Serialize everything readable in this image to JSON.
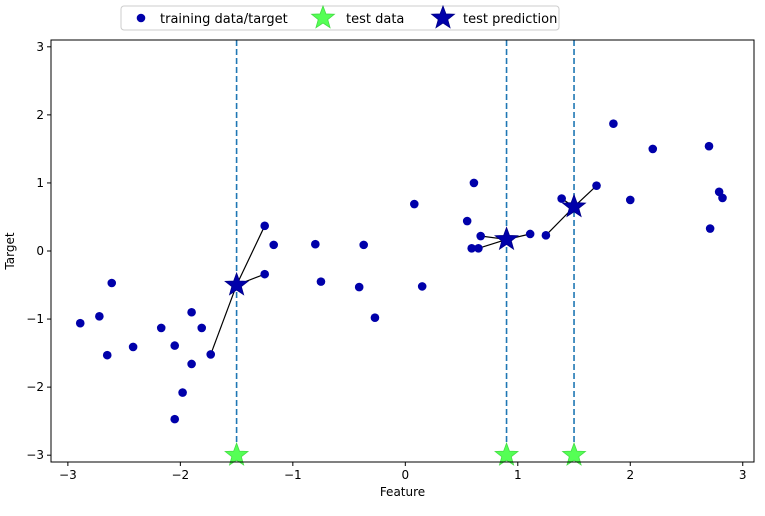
{
  "chart_data": {
    "type": "scatter",
    "xlabel": "Feature",
    "ylabel": "Target",
    "xlim": [
      -3.15,
      3.1
    ],
    "ylim": [
      -3.1,
      3.1
    ],
    "xticks": [
      -3,
      -2,
      -1,
      0,
      1,
      2,
      3
    ],
    "yticks": [
      -3,
      -2,
      -1,
      0,
      1,
      2,
      3
    ],
    "xtick_labels": [
      "−3",
      "−2",
      "−1",
      "0",
      "1",
      "2",
      "3"
    ],
    "ytick_labels": [
      "−3",
      "−2",
      "−1",
      "0",
      "1",
      "2",
      "3"
    ],
    "legend": {
      "placement": "upper-center-outside",
      "entries": [
        {
          "label": "training data/target",
          "marker": "circle",
          "color": "#0000aa"
        },
        {
          "label": "test data",
          "marker": "star",
          "color": "#55ff55"
        },
        {
          "label": "test prediction",
          "marker": "star",
          "color": "#0000aa"
        }
      ]
    },
    "colors": {
      "training": "#0000aa",
      "test_data": "#55ff55",
      "prediction": "#0000aa",
      "vline": "#1f77b4",
      "connector": "#000000"
    },
    "training": [
      {
        "x": -2.89,
        "y": -1.06
      },
      {
        "x": -2.72,
        "y": -0.96
      },
      {
        "x": -2.65,
        "y": -1.53
      },
      {
        "x": -2.61,
        "y": -0.47
      },
      {
        "x": -2.42,
        "y": -1.41
      },
      {
        "x": -2.17,
        "y": -1.13
      },
      {
        "x": -2.05,
        "y": -1.39
      },
      {
        "x": -2.05,
        "y": -2.47
      },
      {
        "x": -1.98,
        "y": -2.08
      },
      {
        "x": -1.9,
        "y": -1.66
      },
      {
        "x": -1.9,
        "y": -0.9
      },
      {
        "x": -1.81,
        "y": -1.13
      },
      {
        "x": -1.73,
        "y": -1.52
      },
      {
        "x": -1.25,
        "y": 0.37
      },
      {
        "x": -1.25,
        "y": -0.34
      },
      {
        "x": -1.17,
        "y": 0.09
      },
      {
        "x": -0.8,
        "y": 0.1
      },
      {
        "x": -0.75,
        "y": -0.45
      },
      {
        "x": -0.41,
        "y": -0.53
      },
      {
        "x": -0.37,
        "y": 0.09
      },
      {
        "x": -0.27,
        "y": -0.98
      },
      {
        "x": 0.08,
        "y": 0.69
      },
      {
        "x": 0.15,
        "y": -0.52
      },
      {
        "x": 0.55,
        "y": 0.44
      },
      {
        "x": 0.59,
        "y": 0.04
      },
      {
        "x": 0.61,
        "y": 1.0
      },
      {
        "x": 0.65,
        "y": 0.04
      },
      {
        "x": 0.67,
        "y": 0.22
      },
      {
        "x": 1.11,
        "y": 0.25
      },
      {
        "x": 1.25,
        "y": 0.23
      },
      {
        "x": 1.39,
        "y": 0.77
      },
      {
        "x": 1.7,
        "y": 0.96
      },
      {
        "x": 1.85,
        "y": 1.87
      },
      {
        "x": 2.0,
        "y": 0.75
      },
      {
        "x": 2.2,
        "y": 1.5
      },
      {
        "x": 2.7,
        "y": 1.54
      },
      {
        "x": 2.71,
        "y": 0.33
      },
      {
        "x": 2.79,
        "y": 0.87
      },
      {
        "x": 2.82,
        "y": 0.78
      }
    ],
    "test_data": [
      {
        "x": -1.5,
        "y": -3.0
      },
      {
        "x": 0.9,
        "y": -3.0
      },
      {
        "x": 1.5,
        "y": -3.0
      }
    ],
    "test_prediction": [
      {
        "x": -1.5,
        "y": -0.5
      },
      {
        "x": 0.9,
        "y": 0.17
      },
      {
        "x": 1.5,
        "y": 0.65
      }
    ],
    "neighbors": [
      [
        {
          "x": -1.25,
          "y": 0.37
        },
        {
          "x": -1.25,
          "y": -0.34
        },
        {
          "x": -1.73,
          "y": -1.52
        }
      ],
      [
        {
          "x": 0.67,
          "y": 0.22
        },
        {
          "x": 1.11,
          "y": 0.25
        },
        {
          "x": 0.65,
          "y": 0.04
        }
      ],
      [
        {
          "x": 1.39,
          "y": 0.77
        },
        {
          "x": 1.7,
          "y": 0.96
        },
        {
          "x": 1.25,
          "y": 0.23
        }
      ]
    ]
  }
}
